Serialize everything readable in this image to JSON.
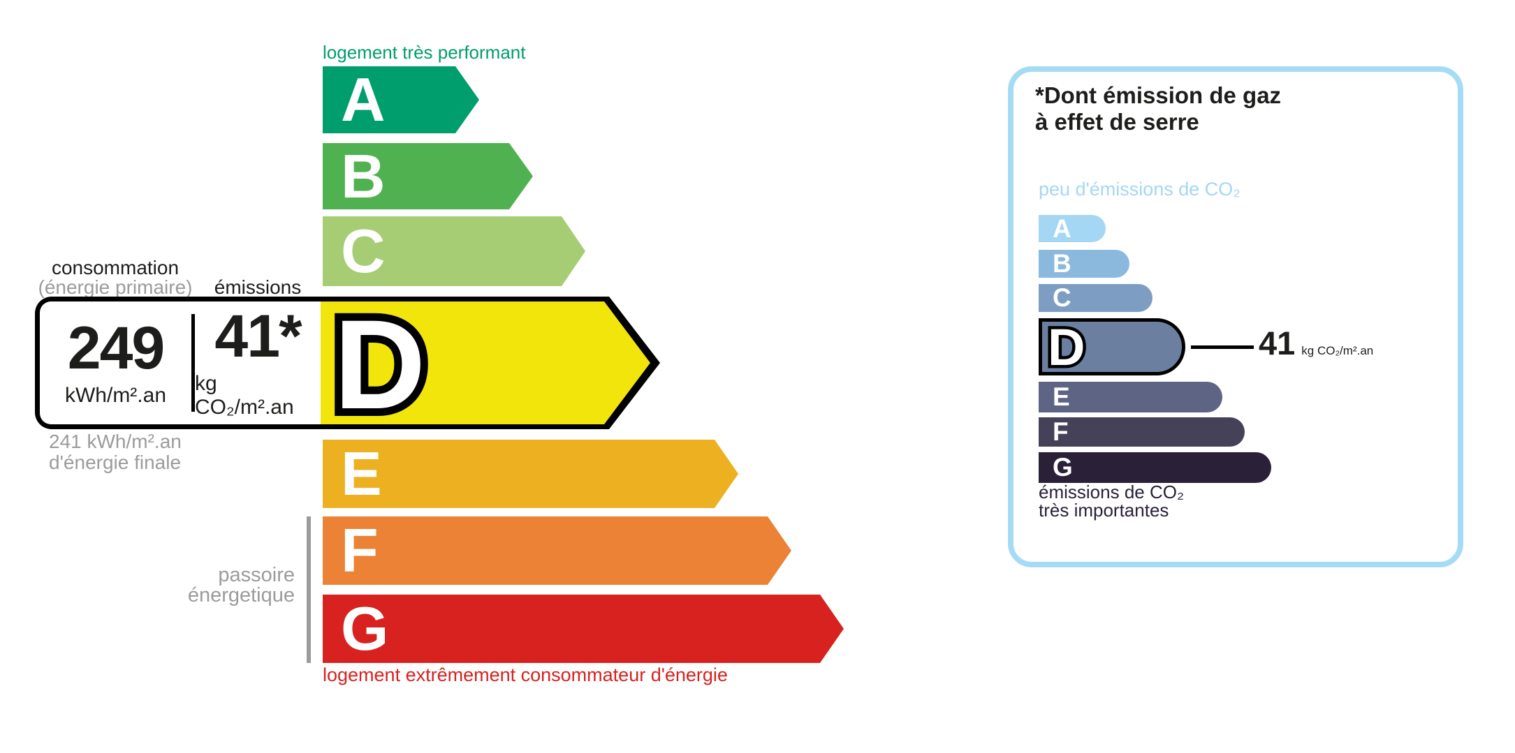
{
  "main_scale": {
    "caption_top": "logement très performant",
    "caption_bottom": "logement extrêmement consommateur d'énergie",
    "caption_top_color": "#009e6c",
    "caption_bottom_color": "#d7221f",
    "header": {
      "consumption_label": "consommation",
      "consumption_sublabel": "(énergie primaire)",
      "emissions_label": "émissions"
    },
    "info_box": {
      "energy_value": "249",
      "energy_unit": "kWh/m².an",
      "co2_value": "41*",
      "co2_unit": "kg CO₂/m².an"
    },
    "final_energy_note": {
      "line1": "241 kWh/m².an",
      "line2": "d'énergie finale"
    },
    "sieve_label": {
      "line1": "passoire",
      "line2": "énergetique"
    },
    "current_rating": "D",
    "bars": [
      {
        "label": "A",
        "color": "#009e6c"
      },
      {
        "label": "B",
        "color": "#50b151"
      },
      {
        "label": "C",
        "color": "#a6cc74"
      },
      {
        "label": "D",
        "color": "#f2e50c"
      },
      {
        "label": "E",
        "color": "#ecb021"
      },
      {
        "label": "F",
        "color": "#eb8235"
      },
      {
        "label": "G",
        "color": "#d7221f"
      }
    ]
  },
  "co2_panel": {
    "border_color": "#a5dcf5",
    "title": {
      "line1": "*Dont émission de gaz",
      "line2": "à effet de serre"
    },
    "caption_top": "peu d'émissions de CO₂",
    "caption_top_color": "#a4d7f4",
    "caption_bottom": {
      "line1": "émissions de CO₂",
      "line2": "très importantes"
    },
    "caption_bottom_color": "#2a2038",
    "current_rating": "D",
    "value": "41",
    "value_unit": "kg CO₂/m².an",
    "bars": [
      {
        "label": "A",
        "color": "#a4d7f4"
      },
      {
        "label": "B",
        "color": "#8bb9de"
      },
      {
        "label": "C",
        "color": "#7d9dc2"
      },
      {
        "label": "D",
        "color": "#6b7fa0"
      },
      {
        "label": "E",
        "color": "#5e6484"
      },
      {
        "label": "F",
        "color": "#454159"
      },
      {
        "label": "G",
        "color": "#2a2038"
      }
    ]
  }
}
